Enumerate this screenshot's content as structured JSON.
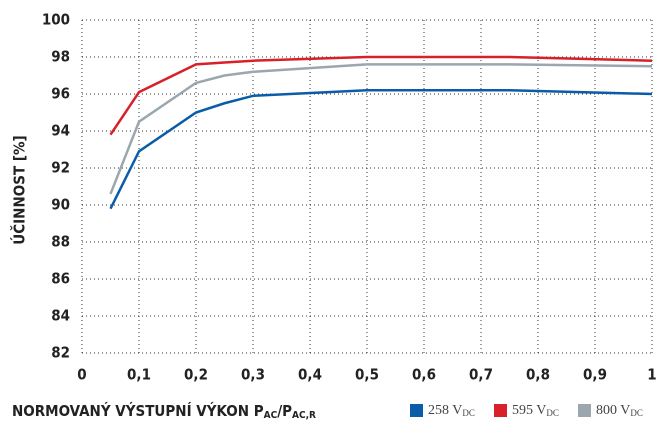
{
  "chart_data": {
    "type": "line",
    "y_label": "ÚČINNOST [%]",
    "x_label": [
      "NORMOVANÝ VÝSTUPNÍ VÝKON P",
      "AC",
      "/P",
      "AC,R"
    ],
    "x": [
      0.05,
      0.1,
      0.2,
      0.25,
      0.3,
      0.5,
      0.75,
      1
    ],
    "series": [
      {
        "name": "258 V",
        "unit_sub": "DC",
        "color": "#0b5ca8",
        "values": [
          89.8,
          92.9,
          95.0,
          95.5,
          95.9,
          96.2,
          96.2,
          96.0
        ]
      },
      {
        "name": "595 V",
        "unit_sub": "DC",
        "color": "#d8202a",
        "values": [
          93.8,
          96.1,
          97.6,
          97.7,
          97.8,
          98.0,
          98.0,
          97.8
        ]
      },
      {
        "name": "800 V",
        "unit_sub": "DC",
        "color": "#9ba6ae",
        "values": [
          90.6,
          94.5,
          96.6,
          97.0,
          97.2,
          97.6,
          97.6,
          97.5
        ]
      }
    ],
    "xlim": [
      0,
      1
    ],
    "xticks": [
      0,
      {
        "value": 0.1,
        "label": "0,1"
      },
      {
        "value": 0.2,
        "label": "0,2"
      },
      {
        "value": 0.3,
        "label": "0,3"
      },
      {
        "value": 0.4,
        "label": "0,4"
      },
      {
        "value": 0.5,
        "label": "0,5"
      },
      {
        "value": 0.6,
        "label": "0,6"
      },
      {
        "value": 0.7,
        "label": "0,7"
      },
      {
        "value": 0.8,
        "label": "0,8"
      },
      {
        "value": 0.9,
        "label": "0,9"
      },
      1
    ],
    "ylim": [
      82,
      100
    ],
    "yticks": [
      82,
      84,
      86,
      88,
      90,
      92,
      94,
      96,
      98,
      100
    ],
    "grid": true
  }
}
